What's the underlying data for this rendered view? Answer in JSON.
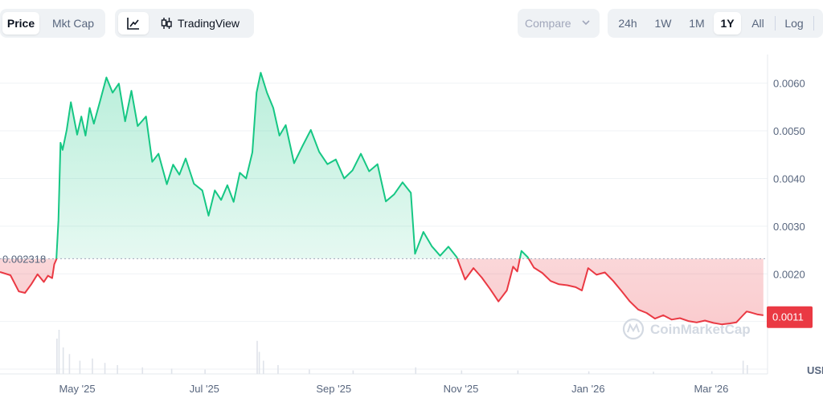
{
  "toolbar": {
    "metric_tabs": [
      {
        "label": "Price",
        "active": true
      },
      {
        "label": "Mkt Cap",
        "active": false
      }
    ],
    "view_tabs": [
      {
        "icon": "line-chart-icon",
        "label": "",
        "active": true
      },
      {
        "icon": "candlestick-icon",
        "label": "TradingView",
        "active": false
      }
    ],
    "compare_label": "Compare",
    "ranges": [
      {
        "label": "24h",
        "active": false
      },
      {
        "label": "1W",
        "active": false
      },
      {
        "label": "1M",
        "active": false
      },
      {
        "label": "1Y",
        "active": true
      },
      {
        "label": "All",
        "active": false
      },
      {
        "label": "Log",
        "active": false
      }
    ]
  },
  "chart_data": {
    "type": "area",
    "baseline_value": 0.002318,
    "baseline_label": "0.002318",
    "current_value": 0.0011,
    "current_label": "0.0011",
    "y_ticks": [
      "0.0060",
      "0.0050",
      "0.0040",
      "0.0030",
      "0.0020"
    ],
    "ylim": [
      -0.0001,
      0.0066
    ],
    "x_tick_labels": [
      "May '25",
      "Jul '25",
      "Sep '25",
      "Nov '25",
      "Jan '26",
      "Mar '26"
    ],
    "x_tick_dates": [
      "2025-05-01",
      "2025-07-01",
      "2025-09-01",
      "2025-11-01",
      "2026-01-01",
      "2026-03-01"
    ],
    "x_range": [
      "2025-03-25",
      "2026-03-28"
    ],
    "currency_label": "USD",
    "watermark": "CoinMarketCap",
    "colors": {
      "up": "#16c784",
      "down": "#ea3943",
      "baseline": "#a1a7bb"
    },
    "series": [
      {
        "points": [
          [
            "2025-03-25",
            0.00204
          ],
          [
            "2025-03-30",
            0.00197
          ],
          [
            "2025-04-03",
            0.00163
          ],
          [
            "2025-04-06",
            0.0016
          ],
          [
            "2025-04-09",
            0.00178
          ],
          [
            "2025-04-12",
            0.00199
          ],
          [
            "2025-04-15",
            0.00183
          ],
          [
            "2025-04-17",
            0.00196
          ],
          [
            "2025-04-19",
            0.00191
          ],
          [
            "2025-04-20",
            0.0022
          ],
          [
            "2025-04-21",
            0.0023
          ],
          [
            "2025-04-22",
            0.00312
          ],
          [
            "2025-04-23",
            0.00475
          ],
          [
            "2025-04-24",
            0.0046
          ],
          [
            "2025-04-26",
            0.00502
          ],
          [
            "2025-04-28",
            0.0056
          ],
          [
            "2025-05-01",
            0.00492
          ],
          [
            "2025-05-03",
            0.0053
          ],
          [
            "2025-05-05",
            0.0049
          ],
          [
            "2025-05-07",
            0.00548
          ],
          [
            "2025-05-09",
            0.00515
          ],
          [
            "2025-05-12",
            0.00563
          ],
          [
            "2025-05-15",
            0.00612
          ],
          [
            "2025-05-18",
            0.0058
          ],
          [
            "2025-05-21",
            0.00599
          ],
          [
            "2025-05-24",
            0.0052
          ],
          [
            "2025-05-27",
            0.00584
          ],
          [
            "2025-05-30",
            0.0051
          ],
          [
            "2025-06-03",
            0.0053
          ],
          [
            "2025-06-06",
            0.00435
          ],
          [
            "2025-06-09",
            0.00452
          ],
          [
            "2025-06-13",
            0.00388
          ],
          [
            "2025-06-16",
            0.00429
          ],
          [
            "2025-06-19",
            0.00408
          ],
          [
            "2025-06-22",
            0.00442
          ],
          [
            "2025-06-26",
            0.00389
          ],
          [
            "2025-06-30",
            0.00375
          ],
          [
            "2025-07-03",
            0.00322
          ],
          [
            "2025-07-06",
            0.00375
          ],
          [
            "2025-07-09",
            0.00355
          ],
          [
            "2025-07-12",
            0.00386
          ],
          [
            "2025-07-15",
            0.00351
          ],
          [
            "2025-07-18",
            0.00412
          ],
          [
            "2025-07-21",
            0.004
          ],
          [
            "2025-07-24",
            0.00455
          ],
          [
            "2025-07-26",
            0.0058
          ],
          [
            "2025-07-28",
            0.00622
          ],
          [
            "2025-07-31",
            0.0058
          ],
          [
            "2025-08-03",
            0.00548
          ],
          [
            "2025-08-06",
            0.0049
          ],
          [
            "2025-08-09",
            0.00512
          ],
          [
            "2025-08-13",
            0.00432
          ],
          [
            "2025-08-17",
            0.00468
          ],
          [
            "2025-08-21",
            0.00502
          ],
          [
            "2025-08-25",
            0.00456
          ],
          [
            "2025-08-29",
            0.0043
          ],
          [
            "2025-09-02",
            0.0044
          ],
          [
            "2025-09-06",
            0.004
          ],
          [
            "2025-09-10",
            0.00417
          ],
          [
            "2025-09-14",
            0.00452
          ],
          [
            "2025-09-18",
            0.00415
          ],
          [
            "2025-09-22",
            0.0043
          ],
          [
            "2025-09-26",
            0.00352
          ],
          [
            "2025-09-30",
            0.00367
          ],
          [
            "2025-10-04",
            0.00392
          ],
          [
            "2025-10-08",
            0.0037
          ],
          [
            "2025-10-10",
            0.00242
          ],
          [
            "2025-10-14",
            0.00288
          ],
          [
            "2025-10-18",
            0.00258
          ],
          [
            "2025-10-22",
            0.00238
          ],
          [
            "2025-10-26",
            0.00257
          ],
          [
            "2025-10-30",
            0.00235
          ],
          [
            "2025-11-03",
            0.00188
          ],
          [
            "2025-11-07",
            0.00212
          ],
          [
            "2025-11-11",
            0.00192
          ],
          [
            "2025-11-15",
            0.00168
          ],
          [
            "2025-11-19",
            0.00142
          ],
          [
            "2025-11-23",
            0.00165
          ],
          [
            "2025-11-26",
            0.00215
          ],
          [
            "2025-11-28",
            0.00205
          ],
          [
            "2025-11-30",
            0.00248
          ],
          [
            "2025-12-03",
            0.00235
          ],
          [
            "2025-12-06",
            0.00213
          ],
          [
            "2025-12-10",
            0.00202
          ],
          [
            "2025-12-14",
            0.00185
          ],
          [
            "2025-12-18",
            0.00178
          ],
          [
            "2025-12-22",
            0.00176
          ],
          [
            "2025-12-26",
            0.00172
          ],
          [
            "2025-12-29",
            0.00165
          ],
          [
            "2026-01-01",
            0.00212
          ],
          [
            "2026-01-05",
            0.00198
          ],
          [
            "2026-01-09",
            0.00203
          ],
          [
            "2026-01-13",
            0.00185
          ],
          [
            "2026-01-17",
            0.00164
          ],
          [
            "2026-01-21",
            0.00142
          ],
          [
            "2026-01-25",
            0.00125
          ],
          [
            "2026-01-29",
            0.00118
          ],
          [
            "2026-02-02",
            0.00106
          ],
          [
            "2026-02-06",
            0.00113
          ],
          [
            "2026-02-10",
            0.00104
          ],
          [
            "2026-02-14",
            0.00107
          ],
          [
            "2026-02-18",
            0.00101
          ],
          [
            "2026-02-22",
            0.00098
          ],
          [
            "2026-02-26",
            0.00102
          ],
          [
            "2026-03-02",
            0.00097
          ],
          [
            "2026-03-06",
            0.00094
          ],
          [
            "2026-03-10",
            0.00096
          ],
          [
            "2026-03-13",
            0.00098
          ],
          [
            "2026-03-16",
            0.00112
          ],
          [
            "2026-03-18",
            0.00121
          ],
          [
            "2026-03-20",
            0.00119
          ],
          [
            "2026-03-23",
            0.00115
          ],
          [
            "2026-03-26",
            0.00113
          ]
        ]
      }
    ],
    "volume": [
      [
        "2025-04-21",
        0.8
      ],
      [
        "2025-04-22",
        1.0
      ],
      [
        "2025-04-24",
        0.6
      ],
      [
        "2025-04-27",
        0.45
      ],
      [
        "2025-05-02",
        0.3
      ],
      [
        "2025-05-08",
        0.35
      ],
      [
        "2025-05-14",
        0.25
      ],
      [
        "2025-05-20",
        0.2
      ],
      [
        "2025-06-01",
        0.15
      ],
      [
        "2025-06-15",
        0.12
      ],
      [
        "2025-07-01",
        0.1
      ],
      [
        "2025-07-26",
        0.75
      ],
      [
        "2025-07-27",
        0.5
      ],
      [
        "2025-07-29",
        0.3
      ],
      [
        "2025-08-05",
        0.2
      ],
      [
        "2025-08-20",
        0.1
      ],
      [
        "2025-09-10",
        0.08
      ],
      [
        "2025-10-10",
        0.15
      ],
      [
        "2025-11-01",
        0.08
      ],
      [
        "2025-11-28",
        0.08
      ],
      [
        "2026-01-01",
        0.06
      ],
      [
        "2026-02-01",
        0.05
      ],
      [
        "2026-03-01",
        0.06
      ],
      [
        "2026-03-16",
        0.3
      ],
      [
        "2026-03-18",
        0.2
      ]
    ]
  }
}
